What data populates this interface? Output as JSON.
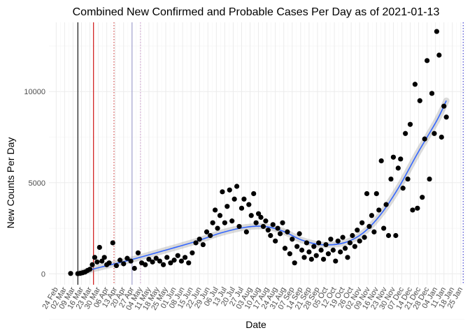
{
  "chart_data": {
    "type": "scatter",
    "title": "Combined New Confirmed and Probable Cases Per Day as of 2021-01-13",
    "xlabel": "Date",
    "ylabel": "New Counts Per Day",
    "xlim": [
      "2020-02-18",
      "2021-01-28"
    ],
    "ylim": [
      -600,
      13800
    ],
    "y_ticks": [
      0,
      5000,
      10000
    ],
    "x_tick_labels": [
      "24 Feb",
      "02 Mar",
      "09 Mar",
      "16 Mar",
      "23 Mar",
      "30 Mar",
      "06 Apr",
      "13 Apr",
      "20 Apr",
      "27 Apr",
      "04 May",
      "11 May",
      "18 May",
      "25 May",
      "01 Jun",
      "08 Jun",
      "15 Jun",
      "22 Jun",
      "29 Jun",
      "06 Jul",
      "13 Jul",
      "20 Jul",
      "27 Jul",
      "03 Aug",
      "10 Aug",
      "17 Aug",
      "24 Aug",
      "31 Aug",
      "07 Sep",
      "14 Sep",
      "21 Sep",
      "28 Sep",
      "05 Oct",
      "12 Oct",
      "19 Oct",
      "26 Oct",
      "02 Nov",
      "09 Nov",
      "16 Nov",
      "23 Nov",
      "30 Nov",
      "07 Dec",
      "14 Dec",
      "21 Dec",
      "28 Dec",
      "04 Jan",
      "11 Jan",
      "18 Jan",
      "25 Jan"
    ],
    "x_tick_dates": [
      "2020-02-24",
      "2020-03-02",
      "2020-03-09",
      "2020-03-16",
      "2020-03-23",
      "2020-03-30",
      "2020-04-06",
      "2020-04-13",
      "2020-04-20",
      "2020-04-27",
      "2020-05-04",
      "2020-05-11",
      "2020-05-18",
      "2020-05-25",
      "2020-06-01",
      "2020-06-08",
      "2020-06-15",
      "2020-06-22",
      "2020-06-29",
      "2020-07-06",
      "2020-07-13",
      "2020-07-20",
      "2020-07-27",
      "2020-08-03",
      "2020-08-10",
      "2020-08-17",
      "2020-08-24",
      "2020-08-31",
      "2020-09-07",
      "2020-09-14",
      "2020-09-21",
      "2020-09-28",
      "2020-10-05",
      "2020-10-12",
      "2020-10-19",
      "2020-10-26",
      "2020-11-02",
      "2020-11-09",
      "2020-11-16",
      "2020-11-23",
      "2020-11-30",
      "2020-12-07",
      "2020-12-14",
      "2020-12-21",
      "2020-12-28",
      "2021-01-04",
      "2021-01-11",
      "2021-01-18",
      "2021-01-25"
    ],
    "grid": true,
    "vlines": [
      {
        "date": "2020-03-13",
        "color": "#000000",
        "style": "solid"
      },
      {
        "date": "2020-03-26",
        "color": "#cc0000",
        "style": "solid"
      },
      {
        "date": "2020-04-12",
        "color": "#cc3333",
        "style": "dotted"
      },
      {
        "date": "2020-04-27",
        "color": "#9999cc",
        "style": "solid"
      },
      {
        "date": "2020-05-04",
        "color": "#cc99cc",
        "style": "dotted"
      },
      {
        "date": "2021-01-27",
        "color": "#3333cc",
        "style": "dotted"
      }
    ],
    "trend_points": [
      {
        "x": "2020-03-13",
        "y": 0
      },
      {
        "x": "2020-03-28",
        "y": 300
      },
      {
        "x": "2020-04-25",
        "y": 750
      },
      {
        "x": "2020-05-25",
        "y": 1300
      },
      {
        "x": "2020-06-20",
        "y": 1800
      },
      {
        "x": "2020-07-10",
        "y": 2250
      },
      {
        "x": "2020-07-30",
        "y": 2550
      },
      {
        "x": "2020-08-15",
        "y": 2600
      },
      {
        "x": "2020-08-30",
        "y": 2350
      },
      {
        "x": "2020-09-15",
        "y": 1850
      },
      {
        "x": "2020-10-01",
        "y": 1600
      },
      {
        "x": "2020-10-20",
        "y": 1700
      },
      {
        "x": "2020-11-05",
        "y": 2250
      },
      {
        "x": "2020-11-20",
        "y": 3300
      },
      {
        "x": "2020-12-05",
        "y": 4800
      },
      {
        "x": "2020-12-20",
        "y": 6600
      },
      {
        "x": "2021-01-05",
        "y": 8400
      },
      {
        "x": "2021-01-13",
        "y": 9500
      }
    ],
    "series": [
      {
        "points": [
          {
            "x": "2020-03-07",
            "y": 20
          },
          {
            "x": "2020-03-13",
            "y": 10
          },
          {
            "x": "2020-03-15",
            "y": 30
          },
          {
            "x": "2020-03-17",
            "y": 60
          },
          {
            "x": "2020-03-19",
            "y": 100
          },
          {
            "x": "2020-03-21",
            "y": 180
          },
          {
            "x": "2020-03-23",
            "y": 250
          },
          {
            "x": "2020-03-25",
            "y": 500
          },
          {
            "x": "2020-03-27",
            "y": 900
          },
          {
            "x": "2020-03-29",
            "y": 650
          },
          {
            "x": "2020-03-31",
            "y": 1450
          },
          {
            "x": "2020-04-02",
            "y": 700
          },
          {
            "x": "2020-04-04",
            "y": 900
          },
          {
            "x": "2020-04-06",
            "y": 500
          },
          {
            "x": "2020-04-08",
            "y": 600
          },
          {
            "x": "2020-04-11",
            "y": 1700
          },
          {
            "x": "2020-04-14",
            "y": 450
          },
          {
            "x": "2020-04-17",
            "y": 750
          },
          {
            "x": "2020-04-20",
            "y": 550
          },
          {
            "x": "2020-04-23",
            "y": 850
          },
          {
            "x": "2020-04-26",
            "y": 700
          },
          {
            "x": "2020-04-29",
            "y": 300
          },
          {
            "x": "2020-05-02",
            "y": 1150
          },
          {
            "x": "2020-05-05",
            "y": 600
          },
          {
            "x": "2020-05-08",
            "y": 500
          },
          {
            "x": "2020-05-11",
            "y": 800
          },
          {
            "x": "2020-05-14",
            "y": 650
          },
          {
            "x": "2020-05-17",
            "y": 850
          },
          {
            "x": "2020-05-20",
            "y": 700
          },
          {
            "x": "2020-05-23",
            "y": 500
          },
          {
            "x": "2020-05-26",
            "y": 900
          },
          {
            "x": "2020-05-29",
            "y": 600
          },
          {
            "x": "2020-06-01",
            "y": 750
          },
          {
            "x": "2020-06-04",
            "y": 1000
          },
          {
            "x": "2020-06-07",
            "y": 700
          },
          {
            "x": "2020-06-10",
            "y": 900
          },
          {
            "x": "2020-06-13",
            "y": 600
          },
          {
            "x": "2020-06-16",
            "y": 1150
          },
          {
            "x": "2020-06-19",
            "y": 1700
          },
          {
            "x": "2020-06-22",
            "y": 1900
          },
          {
            "x": "2020-06-25",
            "y": 1600
          },
          {
            "x": "2020-06-28",
            "y": 2300
          },
          {
            "x": "2020-07-01",
            "y": 2100
          },
          {
            "x": "2020-07-03",
            "y": 2800
          },
          {
            "x": "2020-07-05",
            "y": 3500
          },
          {
            "x": "2020-07-07",
            "y": 2500
          },
          {
            "x": "2020-07-09",
            "y": 3200
          },
          {
            "x": "2020-07-11",
            "y": 4500
          },
          {
            "x": "2020-07-13",
            "y": 2800
          },
          {
            "x": "2020-07-15",
            "y": 3700
          },
          {
            "x": "2020-07-17",
            "y": 4600
          },
          {
            "x": "2020-07-19",
            "y": 2900
          },
          {
            "x": "2020-07-21",
            "y": 4100
          },
          {
            "x": "2020-07-23",
            "y": 4800
          },
          {
            "x": "2020-07-25",
            "y": 2600
          },
          {
            "x": "2020-07-27",
            "y": 3600
          },
          {
            "x": "2020-07-29",
            "y": 4100
          },
          {
            "x": "2020-07-31",
            "y": 2300
          },
          {
            "x": "2020-08-02",
            "y": 3800
          },
          {
            "x": "2020-08-04",
            "y": 3200
          },
          {
            "x": "2020-08-06",
            "y": 4400
          },
          {
            "x": "2020-08-08",
            "y": 2800
          },
          {
            "x": "2020-08-10",
            "y": 3300
          },
          {
            "x": "2020-08-12",
            "y": 3100
          },
          {
            "x": "2020-08-14",
            "y": 2600
          },
          {
            "x": "2020-08-16",
            "y": 2900
          },
          {
            "x": "2020-08-18",
            "y": 2400
          },
          {
            "x": "2020-08-20",
            "y": 2100
          },
          {
            "x": "2020-08-22",
            "y": 2700
          },
          {
            "x": "2020-08-24",
            "y": 1800
          },
          {
            "x": "2020-08-26",
            "y": 2500
          },
          {
            "x": "2020-08-28",
            "y": 2200
          },
          {
            "x": "2020-08-30",
            "y": 2800
          },
          {
            "x": "2020-09-01",
            "y": 1400
          },
          {
            "x": "2020-09-03",
            "y": 2300
          },
          {
            "x": "2020-09-05",
            "y": 1100
          },
          {
            "x": "2020-09-07",
            "y": 1900
          },
          {
            "x": "2020-09-09",
            "y": 600
          },
          {
            "x": "2020-09-11",
            "y": 1500
          },
          {
            "x": "2020-09-13",
            "y": 2200
          },
          {
            "x": "2020-09-15",
            "y": 1300
          },
          {
            "x": "2020-09-17",
            "y": 900
          },
          {
            "x": "2020-09-19",
            "y": 1700
          },
          {
            "x": "2020-09-21",
            "y": 1200
          },
          {
            "x": "2020-09-23",
            "y": 800
          },
          {
            "x": "2020-09-25",
            "y": 1500
          },
          {
            "x": "2020-09-27",
            "y": 1000
          },
          {
            "x": "2020-09-29",
            "y": 1700
          },
          {
            "x": "2020-10-01",
            "y": 1300
          },
          {
            "x": "2020-10-03",
            "y": 800
          },
          {
            "x": "2020-10-05",
            "y": 1600
          },
          {
            "x": "2020-10-07",
            "y": 1100
          },
          {
            "x": "2020-10-09",
            "y": 1900
          },
          {
            "x": "2020-10-11",
            "y": 1300
          },
          {
            "x": "2020-10-13",
            "y": 700
          },
          {
            "x": "2020-10-15",
            "y": 1800
          },
          {
            "x": "2020-10-17",
            "y": 1200
          },
          {
            "x": "2020-10-19",
            "y": 2000
          },
          {
            "x": "2020-10-21",
            "y": 1400
          },
          {
            "x": "2020-10-23",
            "y": 900
          },
          {
            "x": "2020-10-25",
            "y": 1700
          },
          {
            "x": "2020-10-27",
            "y": 2100
          },
          {
            "x": "2020-10-29",
            "y": 1500
          },
          {
            "x": "2020-10-31",
            "y": 2400
          },
          {
            "x": "2020-11-02",
            "y": 1800
          },
          {
            "x": "2020-11-04",
            "y": 2800
          },
          {
            "x": "2020-11-06",
            "y": 2000
          },
          {
            "x": "2020-11-08",
            "y": 4400
          },
          {
            "x": "2020-11-10",
            "y": 2600
          },
          {
            "x": "2020-11-12",
            "y": 3200
          },
          {
            "x": "2020-11-14",
            "y": 2300
          },
          {
            "x": "2020-11-16",
            "y": 4400
          },
          {
            "x": "2020-11-18",
            "y": 3500
          },
          {
            "x": "2020-11-20",
            "y": 6200
          },
          {
            "x": "2020-11-22",
            "y": 2500
          },
          {
            "x": "2020-11-24",
            "y": 3800
          },
          {
            "x": "2020-11-26",
            "y": 2100
          },
          {
            "x": "2020-11-28",
            "y": 5200
          },
          {
            "x": "2020-11-30",
            "y": 6400
          },
          {
            "x": "2020-12-02",
            "y": 2100
          },
          {
            "x": "2020-12-04",
            "y": 5800
          },
          {
            "x": "2020-12-06",
            "y": 6300
          },
          {
            "x": "2020-12-08",
            "y": 4700
          },
          {
            "x": "2020-12-10",
            "y": 7700
          },
          {
            "x": "2020-12-12",
            "y": 5200
          },
          {
            "x": "2020-12-14",
            "y": 8200
          },
          {
            "x": "2020-12-16",
            "y": 3500
          },
          {
            "x": "2020-12-18",
            "y": 10400
          },
          {
            "x": "2020-12-20",
            "y": 3600
          },
          {
            "x": "2020-12-22",
            "y": 9500
          },
          {
            "x": "2020-12-24",
            "y": 4200
          },
          {
            "x": "2020-12-26",
            "y": 7400
          },
          {
            "x": "2020-12-28",
            "y": 11700
          },
          {
            "x": "2020-12-30",
            "y": 5200
          },
          {
            "x": "2021-01-01",
            "y": 9900
          },
          {
            "x": "2021-01-03",
            "y": 7700
          },
          {
            "x": "2021-01-05",
            "y": 13300
          },
          {
            "x": "2021-01-07",
            "y": 12000
          },
          {
            "x": "2021-01-09",
            "y": 7500
          },
          {
            "x": "2021-01-11",
            "y": 9200
          },
          {
            "x": "2021-01-13",
            "y": 8600
          }
        ]
      }
    ]
  }
}
